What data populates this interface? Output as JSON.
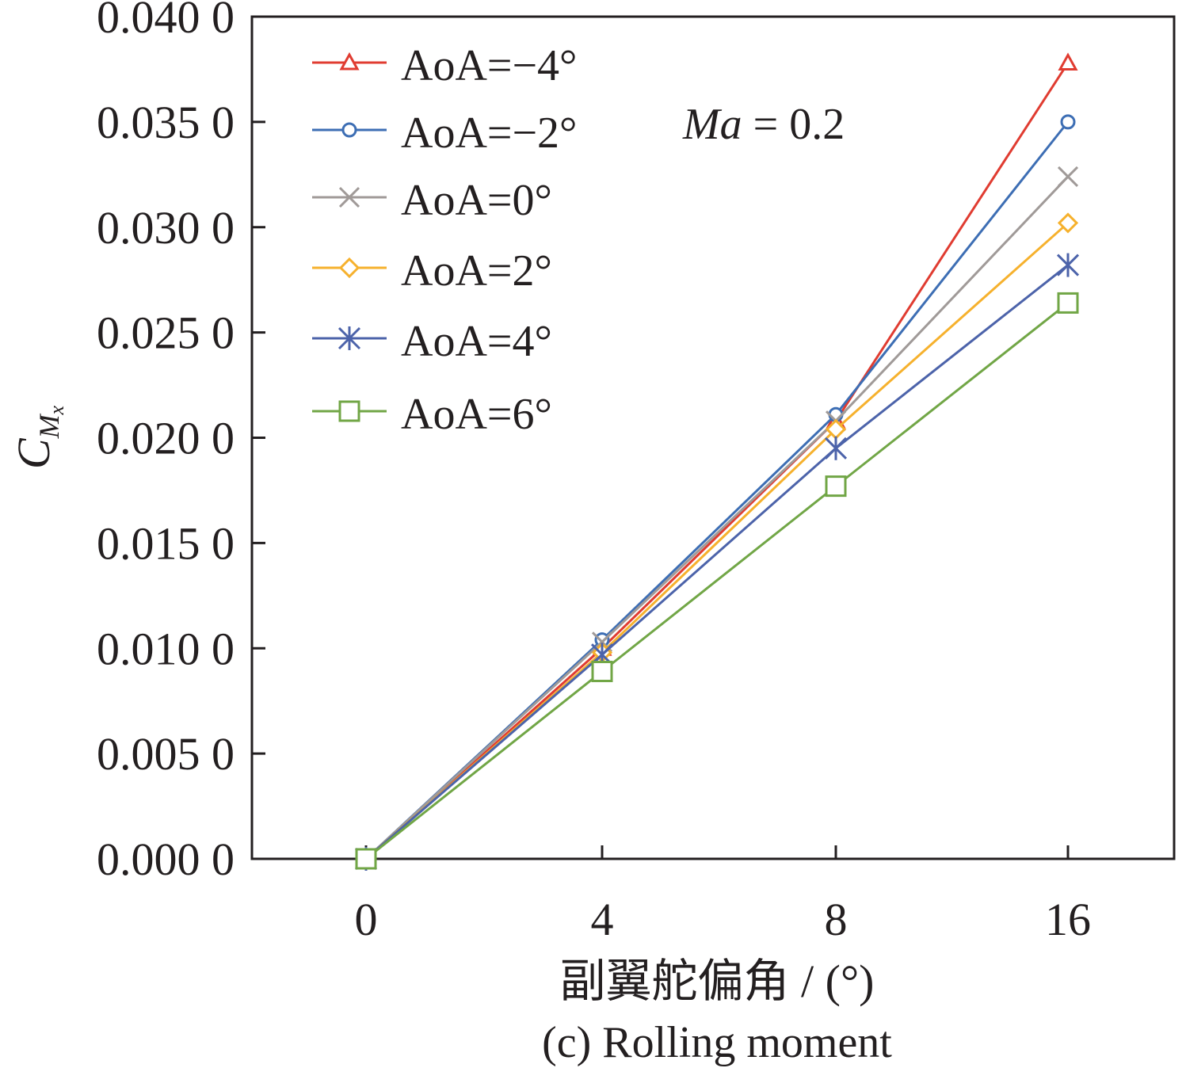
{
  "chart_data": {
    "type": "line",
    "caption": "(c) Rolling moment",
    "xlabel": "副翼舵偏角 / (°)",
    "ylabel": {
      "base": "C",
      "sub": "M",
      "subsub": "x"
    },
    "annotation": {
      "italic": "Ma",
      "rest": " = 0.2"
    },
    "x_categories": [
      "0",
      "4",
      "8",
      "16"
    ],
    "yticks": [
      "0.000 0",
      "0.005 0",
      "0.010 0",
      "0.015 0",
      "0.020 0",
      "0.025 0",
      "0.030 0",
      "0.035 0",
      "0.040 0"
    ],
    "ylim": [
      0,
      0.04
    ],
    "grid": false,
    "legend_position": "top-left",
    "series": [
      {
        "name": "AoA=−4°",
        "color": "#e03c31",
        "marker": "triangle",
        "values": [
          0,
          0.01,
          0.0208,
          0.0378
        ]
      },
      {
        "name": "AoA=−2°",
        "color": "#3d6eb4",
        "marker": "circle",
        "values": [
          0,
          0.0104,
          0.0211,
          0.035
        ]
      },
      {
        "name": "AoA=0°",
        "color": "#a09a98",
        "marker": "x",
        "values": [
          0,
          0.0103,
          0.0208,
          0.0324
        ]
      },
      {
        "name": "AoA=2°",
        "color": "#f6b12d",
        "marker": "diamond",
        "values": [
          0,
          0.0098,
          0.0204,
          0.0302
        ]
      },
      {
        "name": "AoA=4°",
        "color": "#4c63aa",
        "marker": "asterisk",
        "values": [
          0,
          0.0097,
          0.0195,
          0.0282
        ]
      },
      {
        "name": "AoA=6°",
        "color": "#71a646",
        "marker": "square",
        "values": [
          0,
          0.0089,
          0.0177,
          0.0264
        ]
      }
    ]
  }
}
